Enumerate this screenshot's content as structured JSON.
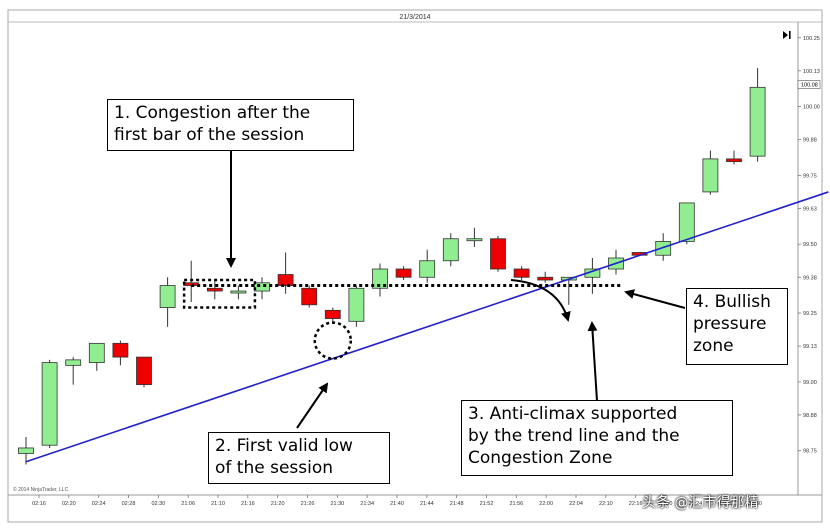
{
  "chart_data": {
    "type": "candlestick",
    "title": "21/3/2014",
    "copyright": "© 2014 NinjaTrader, LLC",
    "ylim": [
      98.6,
      100.3
    ],
    "y_ticks": [
      "100.25",
      "100.13",
      "100.00",
      "99.88",
      "99.75",
      "99.63",
      "99.50",
      "99.38",
      "99.25",
      "99.13",
      "99.00",
      "98.88",
      "98.75"
    ],
    "price_marker": "100.08",
    "x_ticks": [
      "02:16",
      "02:20",
      "02:24",
      "02:28",
      "02:30",
      "21:06",
      "21:10",
      "21:16",
      "21:20",
      "21:26",
      "21:30",
      "21:34",
      "21:40",
      "21:44",
      "21:48",
      "21:52",
      "21:56",
      "22:00",
      "22:04",
      "22:10",
      "22:16",
      "22:20",
      "22:24",
      "22:28",
      "22:30"
    ],
    "bull_color": "#90ee90",
    "bear_color": "#ee0000",
    "candles": [
      {
        "o": 98.74,
        "h": 98.8,
        "l": 98.7,
        "c": 98.76
      },
      {
        "o": 98.77,
        "h": 99.08,
        "l": 98.76,
        "c": 99.07
      },
      {
        "o": 99.06,
        "h": 99.09,
        "l": 98.99,
        "c": 99.08
      },
      {
        "o": 99.07,
        "h": 99.14,
        "l": 99.04,
        "c": 99.14
      },
      {
        "o": 99.14,
        "h": 99.15,
        "l": 99.06,
        "c": 99.09
      },
      {
        "o": 99.09,
        "h": 99.09,
        "l": 98.98,
        "c": 98.99
      },
      {
        "o": 99.27,
        "h": 99.38,
        "l": 99.2,
        "c": 99.35
      },
      {
        "o": 99.36,
        "h": 99.44,
        "l": 99.29,
        "c": 99.35
      },
      {
        "o": 99.34,
        "h": 99.37,
        "l": 99.3,
        "c": 99.33
      },
      {
        "o": 99.33,
        "h": 99.35,
        "l": 99.3,
        "c": 99.33
      },
      {
        "o": 99.33,
        "h": 99.38,
        "l": 99.3,
        "c": 99.36
      },
      {
        "o": 99.39,
        "h": 99.47,
        "l": 99.32,
        "c": 99.35
      },
      {
        "o": 99.34,
        "h": 99.35,
        "l": 99.27,
        "c": 99.28
      },
      {
        "o": 99.26,
        "h": 99.27,
        "l": 99.21,
        "c": 99.23
      },
      {
        "o": 99.22,
        "h": 99.35,
        "l": 99.2,
        "c": 99.34
      },
      {
        "o": 99.34,
        "h": 99.43,
        "l": 99.31,
        "c": 99.41
      },
      {
        "o": 99.41,
        "h": 99.42,
        "l": 99.37,
        "c": 99.38
      },
      {
        "o": 99.38,
        "h": 99.48,
        "l": 99.36,
        "c": 99.44
      },
      {
        "o": 99.44,
        "h": 99.54,
        "l": 99.42,
        "c": 99.52
      },
      {
        "o": 99.52,
        "h": 99.56,
        "l": 99.49,
        "c": 99.52
      },
      {
        "o": 99.52,
        "h": 99.53,
        "l": 99.4,
        "c": 99.41
      },
      {
        "o": 99.41,
        "h": 99.42,
        "l": 99.37,
        "c": 99.38
      },
      {
        "o": 99.38,
        "h": 99.4,
        "l": 99.36,
        "c": 99.37
      },
      {
        "o": 99.37,
        "h": 99.38,
        "l": 99.28,
        "c": 99.38
      },
      {
        "o": 99.38,
        "h": 99.45,
        "l": 99.32,
        "c": 99.41
      },
      {
        "o": 99.41,
        "h": 99.48,
        "l": 99.39,
        "c": 99.45
      },
      {
        "o": 99.47,
        "h": 99.47,
        "l": 99.46,
        "c": 99.46
      },
      {
        "o": 99.46,
        "h": 99.54,
        "l": 99.44,
        "c": 99.51
      },
      {
        "o": 99.51,
        "h": 99.65,
        "l": 99.5,
        "c": 99.65
      },
      {
        "o": 99.69,
        "h": 99.84,
        "l": 99.68,
        "c": 99.81
      },
      {
        "o": 99.81,
        "h": 99.84,
        "l": 99.79,
        "c": 99.8
      },
      {
        "o": 99.82,
        "h": 100.14,
        "l": 99.8,
        "c": 100.07
      }
    ],
    "trend_line": {
      "from_bar": 0,
      "from_price": 98.71,
      "to_bar": 34,
      "to_price": 99.69
    },
    "congestion_level": 99.35,
    "congestion_box": {
      "from_bar": 6.7,
      "to_bar": 9.7,
      "low": 99.27,
      "high": 99.37
    },
    "valid_low": {
      "bar": 13,
      "price": 99.15
    },
    "annotations": [
      {
        "id": 1,
        "lines": [
          "1. Congestion after the",
          "first bar of the session"
        ]
      },
      {
        "id": 2,
        "lines": [
          "2. First valid low",
          "of the session"
        ]
      },
      {
        "id": 3,
        "lines": [
          "3. Anti-climax supported",
          "by the trend line and the",
          "Congestion Zone"
        ]
      },
      {
        "id": 4,
        "lines": [
          "4. Bullish",
          "pressure",
          "zone"
        ]
      }
    ]
  },
  "watermark": "头条 @汇市得那精"
}
